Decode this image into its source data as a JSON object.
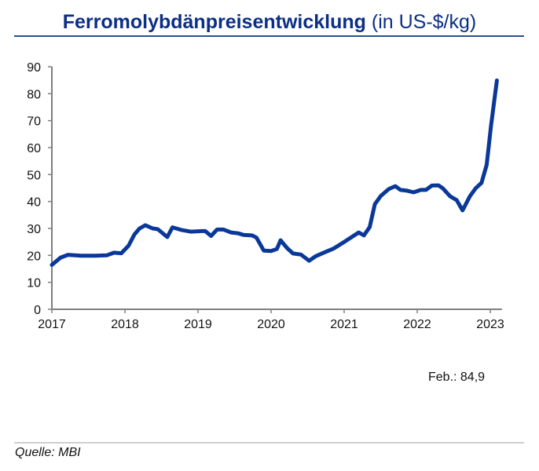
{
  "header": {
    "title_main": "Ferromolybdänpreisentwicklung",
    "title_unit": "(in US-$/kg)"
  },
  "annotation": "Feb.: 84,9",
  "footer": {
    "source": "Quelle: MBI"
  },
  "colors": {
    "title": "#0b2f86",
    "line": "#0a3899",
    "axis": "#7f7f7f"
  },
  "chart_data": {
    "type": "line",
    "title": "Ferromolybdänpreisentwicklung (in US-$/kg)",
    "xlabel": "",
    "ylabel": "US-$/kg",
    "ylim": [
      0,
      90
    ],
    "yticks": [
      0,
      10,
      20,
      30,
      40,
      50,
      60,
      70,
      80,
      90
    ],
    "xticks": [
      "2017",
      "2018",
      "2019",
      "2020",
      "2021",
      "2022",
      "2023"
    ],
    "xlim": [
      2017,
      2023.16
    ],
    "grid": false,
    "legend": null,
    "annotations": [
      "Feb.: 84,9"
    ],
    "series": [
      {
        "name": "Ferromolybdän",
        "x": [
          2017.0,
          2017.12,
          2017.22,
          2017.4,
          2017.6,
          2017.75,
          2017.85,
          2017.95,
          2018.05,
          2018.13,
          2018.2,
          2018.28,
          2018.38,
          2018.45,
          2018.58,
          2018.65,
          2018.78,
          2018.9,
          2019.05,
          2019.1,
          2019.18,
          2019.26,
          2019.35,
          2019.45,
          2019.55,
          2019.62,
          2019.74,
          2019.8,
          2019.9,
          2020.0,
          2020.08,
          2020.13,
          2020.22,
          2020.3,
          2020.41,
          2020.52,
          2020.61,
          2020.72,
          2020.86,
          2021.0,
          2021.2,
          2021.27,
          2021.35,
          2021.42,
          2021.5,
          2021.61,
          2021.7,
          2021.77,
          2021.86,
          2021.95,
          2022.05,
          2022.12,
          2022.2,
          2022.29,
          2022.35,
          2022.45,
          2022.54,
          2022.62,
          2022.72,
          2022.8,
          2022.88,
          2022.95,
          2023.01,
          2023.09
        ],
        "values": [
          16.5,
          19.2,
          20.2,
          19.9,
          19.9,
          20.0,
          21.0,
          20.8,
          23.6,
          27.8,
          30.0,
          31.2,
          30.0,
          29.7,
          26.8,
          30.4,
          29.4,
          28.8,
          29.0,
          29.0,
          27.2,
          29.6,
          29.6,
          28.5,
          28.2,
          27.6,
          27.4,
          26.6,
          21.8,
          21.6,
          22.4,
          25.6,
          22.7,
          20.7,
          20.3,
          18.0,
          19.7,
          21.0,
          22.6,
          25.0,
          28.5,
          27.4,
          30.5,
          39.0,
          42.0,
          44.6,
          45.7,
          44.3,
          44.0,
          43.4,
          44.3,
          44.3,
          45.9,
          46.0,
          44.9,
          41.9,
          40.5,
          36.7,
          41.9,
          44.9,
          46.9,
          53.6,
          68.0,
          84.9
        ]
      }
    ]
  }
}
